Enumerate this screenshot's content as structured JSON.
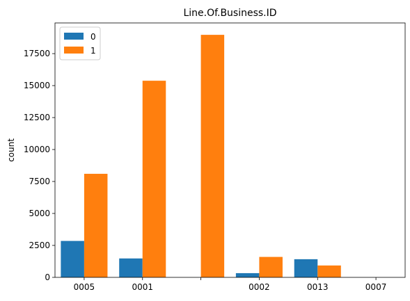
{
  "chart_data": {
    "type": "bar",
    "title": "Line.Of.Business.ID",
    "xlabel": "",
    "ylabel": "count",
    "categories": [
      "0005",
      "0001",
      "",
      "0002",
      "0013",
      "0007"
    ],
    "series": [
      {
        "name": "0",
        "color": "#1f77b4",
        "values": [
          2850,
          1480,
          0,
          330,
          1420,
          0
        ]
      },
      {
        "name": "1",
        "color": "#ff7f0e",
        "values": [
          8100,
          15380,
          18970,
          1600,
          930,
          0
        ]
      }
    ],
    "ylim": [
      0,
      19900
    ],
    "yticks": [
      0,
      2500,
      5000,
      7500,
      10000,
      12500,
      15000,
      17500
    ],
    "ytick_labels": [
      "0",
      "2500",
      "5000",
      "7500",
      "10000",
      "12500",
      "15000",
      "17500"
    ],
    "grid": false,
    "legend_position": "top-left"
  }
}
